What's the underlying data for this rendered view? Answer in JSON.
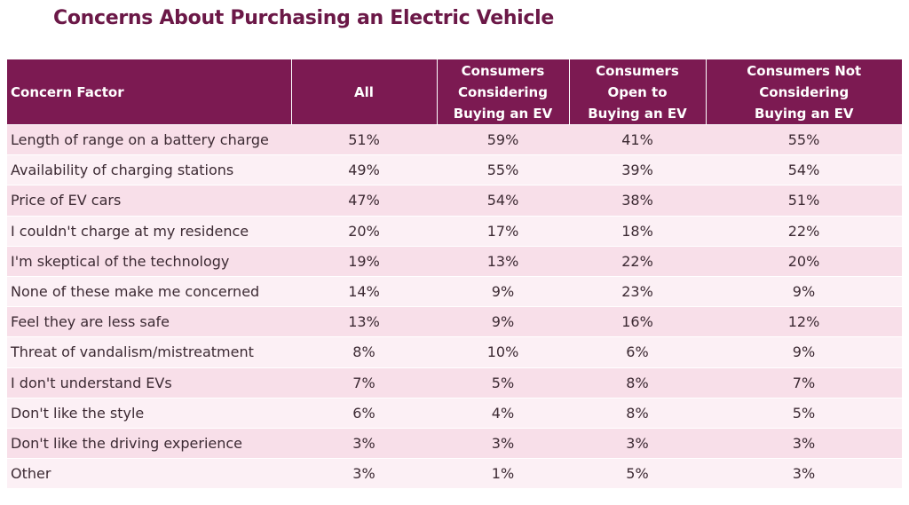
{
  "title": "Concerns About Purchasing an Electric Vehicle",
  "table": {
    "headers": [
      "Concern Factor",
      "All",
      "Consumers\nConsidering\nBuying an EV",
      "Consumers\nOpen to\nBuying an EV",
      "Consumers Not\nConsidering\nBuying  an EV"
    ],
    "rows": [
      [
        "Length of range on a battery charge",
        "51%",
        "59%",
        "41%",
        "55%"
      ],
      [
        "Availability of charging stations",
        "49%",
        "55%",
        "39%",
        "54%"
      ],
      [
        "Price of EV cars",
        "47%",
        "54%",
        "38%",
        "51%"
      ],
      [
        "I couldn't charge at my residence",
        "20%",
        "17%",
        "18%",
        "22%"
      ],
      [
        "I'm skeptical of the technology",
        "19%",
        "13%",
        "22%",
        "20%"
      ],
      [
        "None of these make me concerned",
        "14%",
        "9%",
        "23%",
        "9%"
      ],
      [
        "Feel they are less safe",
        "13%",
        "9%",
        "16%",
        "12%"
      ],
      [
        "Threat of vandalism/mistreatment",
        "8%",
        "10%",
        "6%",
        "9%"
      ],
      [
        "I don't understand EVs",
        "7%",
        "5%",
        "8%",
        "7%"
      ],
      [
        "Don't like the style",
        "6%",
        "4%",
        "8%",
        "5%"
      ],
      [
        "Don't like the driving experience",
        "3%",
        "3%",
        "3%",
        "3%"
      ],
      [
        "Other",
        "3%",
        "1%",
        "5%",
        "3%"
      ]
    ]
  },
  "colors": {
    "title": "#6b1847",
    "header_bg": "#7c1a52",
    "row_odd": "#f8dfe9",
    "row_even": "#fcf0f5"
  }
}
